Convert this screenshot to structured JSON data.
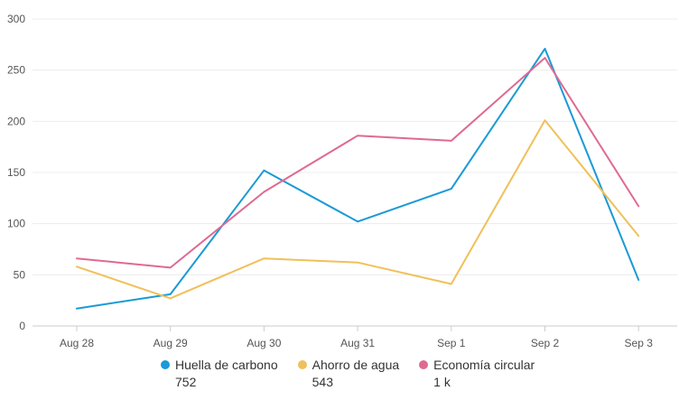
{
  "chart_data": {
    "type": "line",
    "categories": [
      "Aug 28",
      "Aug 29",
      "Aug 30",
      "Aug 31",
      "Sep 1",
      "Sep 2",
      "Sep 3"
    ],
    "y_ticks": [
      "0",
      "50",
      "100",
      "150",
      "200",
      "250",
      "300"
    ],
    "ylim": [
      0,
      300
    ],
    "grid": true,
    "legend_position": "bottom",
    "series": [
      {
        "name": "Huella de carbono",
        "total": "752",
        "color": "#1a9ad6",
        "values": [
          17,
          31,
          152,
          102,
          134,
          271,
          45
        ]
      },
      {
        "name": "Ahorro de agua",
        "total": "543",
        "color": "#f0c05a",
        "values": [
          58,
          27,
          66,
          62,
          41,
          201,
          88
        ]
      },
      {
        "name": "Economía circular",
        "total": "1 k",
        "color": "#de6a92",
        "values": [
          66,
          57,
          131,
          186,
          181,
          262,
          117
        ]
      }
    ]
  }
}
